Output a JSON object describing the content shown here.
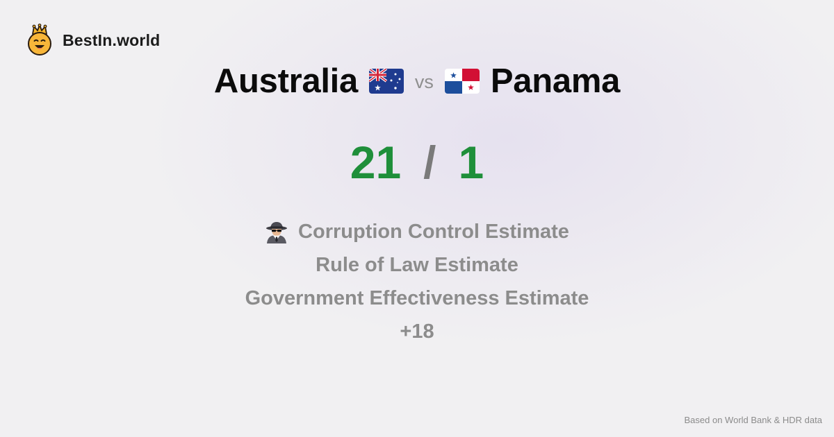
{
  "brand": {
    "name": "BestIn.world",
    "logo_icon": "crown-smiley-icon"
  },
  "comparison": {
    "left_country": "Australia",
    "left_flag_icon": "australia-flag-icon",
    "separator": "vs",
    "right_country": "Panama",
    "right_flag_icon": "panama-flag-icon"
  },
  "score": {
    "left": "21",
    "separator": "/",
    "right": "1",
    "color": "#1f8f3a"
  },
  "metrics": {
    "icon": "spy-detective-icon",
    "items": [
      "Corruption Control Estimate",
      "Rule of Law Estimate",
      "Government Effectiveness Estimate"
    ],
    "more": "+18"
  },
  "footer": {
    "source": "Based on World Bank & HDR data"
  }
}
